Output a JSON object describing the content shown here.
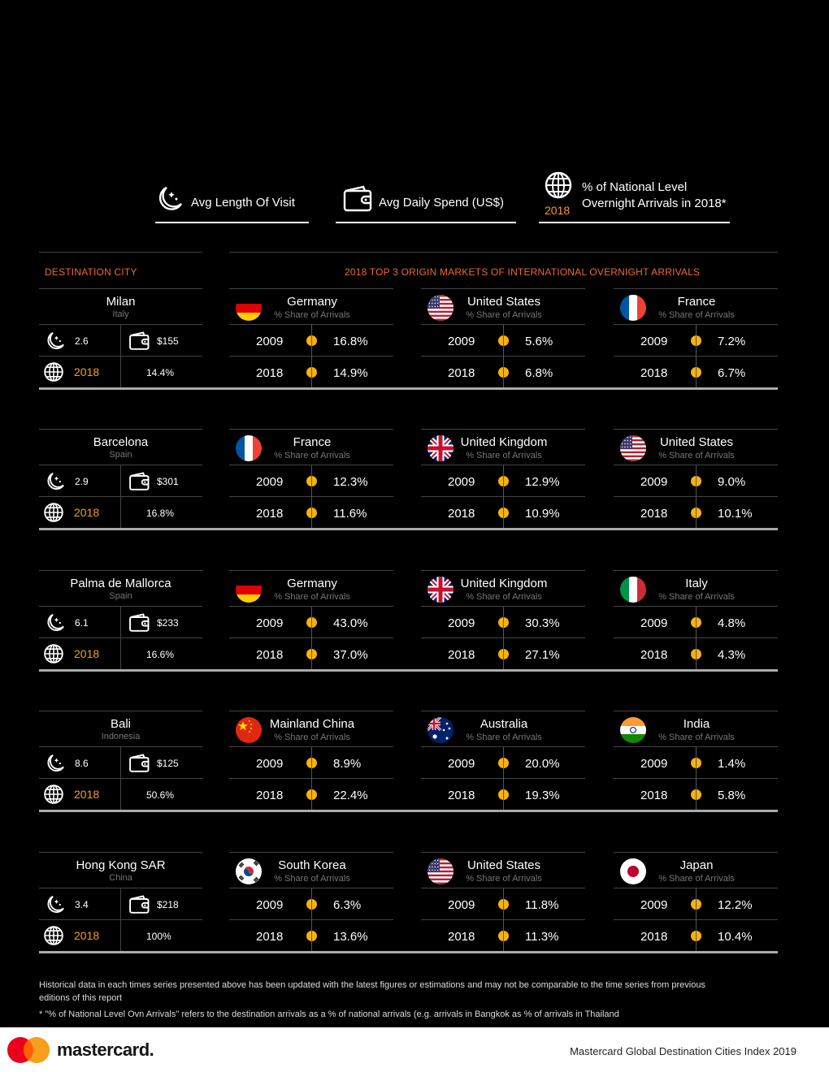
{
  "legend": {
    "avg_length": "Avg Length Of Visit",
    "avg_spend": "Avg Daily Spend (US$)",
    "national_line1": "% of National Level",
    "national_line2": "Overnight Arrivals in 2018*",
    "year": "2018"
  },
  "headers": {
    "destination": "DESTINATION CITY",
    "origins": "2018 TOP 3 ORIGIN MARKETS OF INTERNATIONAL OVERNIGHT ARRIVALS"
  },
  "common": {
    "share_label": "% Share of Arrivals",
    "y1": "2009",
    "y2": "2018",
    "city_year": "2018"
  },
  "rows": [
    {
      "city": "Milan",
      "country": "Italy",
      "length": "2.6",
      "spend": "$155",
      "national": "14.4%",
      "markets": [
        {
          "name": "Germany",
          "flag": "germany",
          "v2009": "16.8%",
          "v2018": "14.9%"
        },
        {
          "name": "United States",
          "flag": "usa",
          "v2009": "5.6%",
          "v2018": "6.8%"
        },
        {
          "name": "France",
          "flag": "france",
          "v2009": "7.2%",
          "v2018": "6.7%"
        }
      ]
    },
    {
      "city": "Barcelona",
      "country": "Spain",
      "length": "2.9",
      "spend": "$301",
      "national": "16.8%",
      "markets": [
        {
          "name": "France",
          "flag": "france",
          "v2009": "12.3%",
          "v2018": "11.6%"
        },
        {
          "name": "United Kingdom",
          "flag": "uk",
          "v2009": "12.9%",
          "v2018": "10.9%"
        },
        {
          "name": "United States",
          "flag": "usa",
          "v2009": "9.0%",
          "v2018": "10.1%"
        }
      ]
    },
    {
      "city": "Palma de Mallorca",
      "country": "Spain",
      "length": "6.1",
      "spend": "$233",
      "national": "16.6%",
      "markets": [
        {
          "name": "Germany",
          "flag": "germany",
          "v2009": "43.0%",
          "v2018": "37.0%"
        },
        {
          "name": "United Kingdom",
          "flag": "uk",
          "v2009": "30.3%",
          "v2018": "27.1%"
        },
        {
          "name": "Italy",
          "flag": "italy",
          "v2009": "4.8%",
          "v2018": "4.3%"
        }
      ]
    },
    {
      "city": "Bali",
      "country": "Indonesia",
      "length": "8.6",
      "spend": "$125",
      "national": "50.6%",
      "markets": [
        {
          "name": "Mainland China",
          "flag": "china",
          "v2009": "8.9%",
          "v2018": "22.4%"
        },
        {
          "name": "Australia",
          "flag": "australia",
          "v2009": "20.0%",
          "v2018": "19.3%"
        },
        {
          "name": "India",
          "flag": "india",
          "v2009": "1.4%",
          "v2018": "5.8%"
        }
      ]
    },
    {
      "city": "Hong Kong SAR",
      "country": "China",
      "length": "3.4",
      "spend": "$218",
      "national": "100%",
      "markets": [
        {
          "name": "South Korea",
          "flag": "korea",
          "v2009": "6.3%",
          "v2018": "13.6%"
        },
        {
          "name": "United States",
          "flag": "usa",
          "v2009": "11.8%",
          "v2018": "11.3%"
        },
        {
          "name": "Japan",
          "flag": "japan",
          "v2009": "12.2%",
          "v2018": "10.4%"
        }
      ]
    }
  ],
  "notes": {
    "line1": "Historical data in each times series presented above has been updated with the latest figures or estimations and may not be comparable to the time series from previous editions of this report",
    "line2": "* \"% of National Level Ovn Arrivals\" refers to the destination arrivals as a % of national arrivals  (e.g. arrivals  in Bangkok as % of arrivals in Thailand"
  },
  "footer": {
    "brand": "mastercard.",
    "title": "Mastercard Global Destination Cities Index 2019"
  },
  "colors": {
    "accent_orange": "#eb6a2a",
    "year_orange": "#f79e1b",
    "dot_yellow": "#f9b20a",
    "mc_red": "#eb001b",
    "mc_yellow": "#f79e1b"
  }
}
